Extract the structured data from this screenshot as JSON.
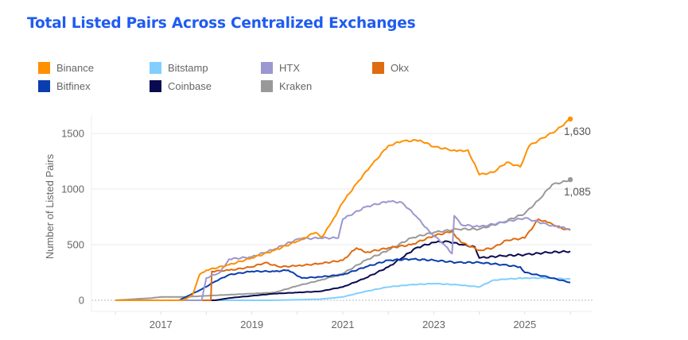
{
  "chart_data": {
    "type": "line",
    "title": "Total Listed Pairs Across Centralized Exchanges",
    "xlabel": "",
    "ylabel": "Number of Listed Pairs",
    "xlim": [
      2015.8,
      2026.5
    ],
    "ylim": [
      -30,
      1650
    ],
    "x_ticks": [
      2017,
      2019,
      2021,
      2023,
      2025
    ],
    "x_tick_labels": [
      "2017",
      "2019",
      "2021",
      "2023",
      "2025"
    ],
    "y_ticks": [
      0,
      500,
      1000,
      1500
    ],
    "y_tick_labels": [
      "0",
      "500",
      "1000",
      "1500"
    ],
    "grid": true,
    "legend_position": "top",
    "end_labels": [
      {
        "series": "Binance",
        "value": 1630,
        "text": "1,630"
      },
      {
        "series": "Kraken",
        "value": 1085,
        "text": "1,085"
      }
    ],
    "series": [
      {
        "name": "Binance",
        "color": "#ff9000",
        "x": [
          2016.0,
          2017.5,
          2017.7,
          2017.85,
          2018.0,
          2018.5,
          2019.0,
          2019.5,
          2020.0,
          2020.4,
          2020.55,
          2020.75,
          2021.0,
          2021.3,
          2021.6,
          2022.0,
          2022.3,
          2022.7,
          2023.0,
          2023.3,
          2023.5,
          2023.75,
          2024.0,
          2024.3,
          2024.6,
          2024.9,
          2025.1,
          2025.4,
          2025.7,
          2026.0
        ],
        "values": [
          0,
          0,
          50,
          230,
          270,
          320,
          380,
          450,
          530,
          610,
          570,
          700,
          880,
          1050,
          1200,
          1390,
          1430,
          1440,
          1380,
          1360,
          1340,
          1350,
          1130,
          1150,
          1240,
          1200,
          1390,
          1460,
          1530,
          1630
        ]
      },
      {
        "name": "Bitstamp",
        "color": "#82cfff",
        "x": [
          2016.0,
          2019.5,
          2020.0,
          2020.5,
          2021.0,
          2021.5,
          2022.0,
          2022.5,
          2023.0,
          2023.5,
          2024.0,
          2024.3,
          2024.6,
          2025.0,
          2025.5,
          2026.0
        ],
        "values": [
          0,
          0,
          5,
          10,
          30,
          80,
          120,
          140,
          150,
          140,
          120,
          180,
          190,
          200,
          200,
          190
        ]
      },
      {
        "name": "HTX",
        "color": "#9b97d0",
        "x": [
          2016.0,
          2017.9,
          2018.0,
          2018.3,
          2018.5,
          2019.0,
          2019.5,
          2020.0,
          2020.5,
          2020.9,
          2021.0,
          2021.5,
          2022.0,
          2022.3,
          2022.6,
          2022.9,
          2023.2,
          2023.4,
          2023.45,
          2023.6,
          2024.0,
          2024.5,
          2025.0,
          2025.5,
          2026.0
        ],
        "values": [
          0,
          0,
          200,
          250,
          370,
          390,
          460,
          550,
          560,
          560,
          730,
          840,
          890,
          880,
          760,
          620,
          510,
          420,
          760,
          680,
          660,
          700,
          740,
          680,
          640
        ]
      },
      {
        "name": "Okx",
        "color": "#e06a10",
        "x": [
          2016.0,
          2018.1,
          2018.12,
          2018.5,
          2019.0,
          2019.3,
          2019.6,
          2020.0,
          2020.5,
          2021.0,
          2021.3,
          2021.5,
          2022.0,
          2022.5,
          2023.0,
          2023.4,
          2023.6,
          2024.0,
          2024.3,
          2024.6,
          2025.0,
          2025.3,
          2025.5,
          2025.8,
          2026.0
        ],
        "values": [
          0,
          0,
          260,
          270,
          300,
          340,
          300,
          310,
          330,
          360,
          470,
          430,
          470,
          500,
          580,
          620,
          520,
          450,
          470,
          540,
          560,
          730,
          700,
          650,
          630
        ]
      },
      {
        "name": "Bitfinex",
        "color": "#0a3dae",
        "x": [
          2016.0,
          2017.4,
          2017.6,
          2017.9,
          2018.2,
          2018.5,
          2019.0,
          2019.5,
          2019.8,
          2020.1,
          2020.5,
          2021.0,
          2021.5,
          2022.0,
          2022.5,
          2023.0,
          2023.5,
          2024.0,
          2024.5,
          2024.9,
          2025.0,
          2025.5,
          2026.0
        ],
        "values": [
          0,
          0,
          40,
          100,
          170,
          230,
          260,
          260,
          270,
          200,
          210,
          230,
          300,
          360,
          370,
          360,
          340,
          340,
          320,
          300,
          250,
          210,
          160
        ]
      },
      {
        "name": "Coinbase",
        "color": "#0a0a50",
        "x": [
          2016.0,
          2018.2,
          2018.5,
          2019.0,
          2019.5,
          2020.0,
          2020.5,
          2021.0,
          2021.5,
          2022.0,
          2022.3,
          2022.6,
          2023.0,
          2023.3,
          2023.6,
          2023.9,
          2024.0,
          2024.5,
          2025.0,
          2025.5,
          2026.0
        ],
        "values": [
          0,
          0,
          20,
          40,
          60,
          70,
          80,
          120,
          200,
          300,
          380,
          470,
          520,
          530,
          500,
          480,
          380,
          400,
          410,
          430,
          440
        ]
      },
      {
        "name": "Kraken",
        "color": "#999999",
        "x": [
          2016.0,
          2016.8,
          2017.0,
          2017.5,
          2018.0,
          2018.5,
          2019.0,
          2019.5,
          2020.0,
          2020.5,
          2021.0,
          2021.5,
          2022.0,
          2022.5,
          2023.0,
          2023.5,
          2024.0,
          2024.5,
          2025.0,
          2025.3,
          2025.6,
          2025.9,
          2026.0
        ],
        "values": [
          0,
          20,
          30,
          30,
          40,
          50,
          60,
          70,
          130,
          180,
          240,
          360,
          450,
          560,
          610,
          640,
          640,
          700,
          780,
          900,
          1040,
          1070,
          1085
        ]
      }
    ]
  }
}
